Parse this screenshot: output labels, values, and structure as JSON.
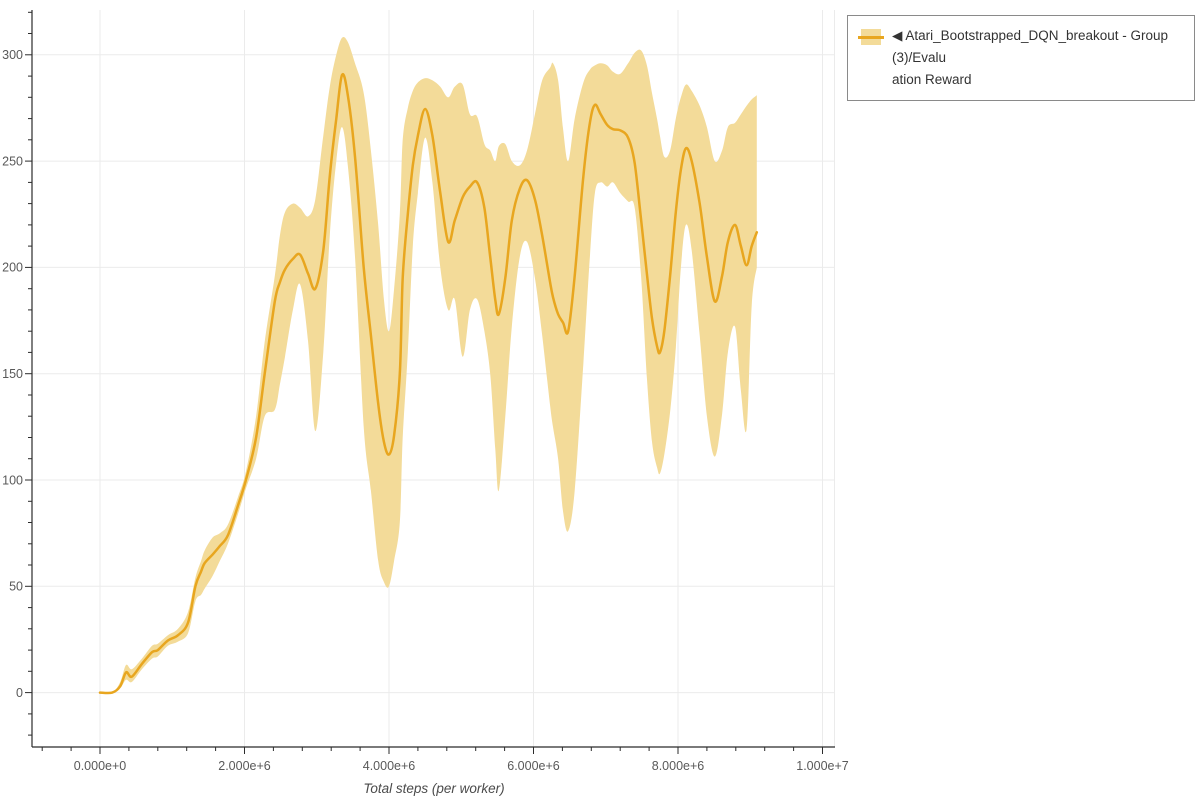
{
  "page": {
    "background": "#ffffff"
  },
  "legend": {
    "collapse_icon": "◀",
    "label_full": "Atari_Bootstrapped_DQN_breakout - Group(3)/Evaluation Reward",
    "label_lines": [
      "Atari_Bootstrapped_DQN_breakout - Group(3)/Evalu",
      "ation Reward"
    ],
    "swatch": {
      "band_color": "#F3DB99",
      "line_color": "#E8A61F"
    }
  },
  "colors": {
    "grid": "#EBEBEB",
    "axis": "#2B2B2B",
    "tick_label": "#595959",
    "axis_label": "#4A4A4A",
    "series_line": "#E8A61F",
    "series_band": "#F3DB99"
  },
  "chart_data": {
    "type": "line",
    "title": "",
    "xlabel": "Total steps (per worker)",
    "ylabel": "",
    "x_unit": "steps, stored in millions (1e6)",
    "grid": "on",
    "legend_position": "top-right-outside",
    "x_axis": {
      "major_ticks": [
        0,
        2,
        4,
        6,
        8,
        10
      ],
      "major_labels": [
        "0.000e+0",
        "2.000e+6",
        "4.000e+6",
        "6.000e+6",
        "8.000e+6",
        "1.000e+7"
      ],
      "minor_step": 0.4,
      "minor_start": -0.8,
      "minor_end": 10
    },
    "y_axis": {
      "major_ticks": [
        0,
        50,
        100,
        150,
        200,
        250,
        300
      ],
      "major_labels": [
        "0",
        "50",
        "100",
        "150",
        "200",
        "250",
        "300"
      ],
      "minor_step": 10,
      "minor_start": -20,
      "minor_end": 320
    },
    "series": [
      {
        "name": "Atari_Bootstrapped_DQN_breakout - Group(3)/Evaluation Reward",
        "color": "#E8A61F",
        "band_color": "#F3DB99",
        "smoothed": true,
        "x": [
          0,
          0.17,
          0.28,
          0.36,
          0.44,
          0.58,
          0.72,
          0.8,
          0.94,
          1.08,
          1.22,
          1.32,
          1.4,
          1.45,
          1.56,
          1.66,
          1.77,
          1.91,
          2.02,
          2.16,
          2.28,
          2.42,
          2.49,
          2.56,
          2.67,
          2.77,
          2.88,
          2.98,
          3.09,
          3.18,
          3.27,
          3.35,
          3.43,
          3.53,
          3.65,
          3.75,
          3.85,
          3.93,
          4.0,
          4.07,
          4.15,
          4.19,
          4.26,
          4.33,
          4.4,
          4.5,
          4.6,
          4.71,
          4.82,
          4.91,
          5.02,
          5.12,
          5.22,
          5.32,
          5.4,
          5.47,
          5.52,
          5.61,
          5.7,
          5.81,
          5.91,
          6.02,
          6.12,
          6.23,
          6.27,
          6.34,
          6.41,
          6.48,
          6.57,
          6.69,
          6.78,
          6.85,
          6.93,
          7.02,
          7.1,
          7.2,
          7.31,
          7.4,
          7.49,
          7.57,
          7.64,
          7.71,
          7.75,
          7.81,
          7.89,
          7.97,
          8.04,
          8.11,
          8.19,
          8.3,
          8.4,
          8.51,
          8.61,
          8.69,
          8.79,
          8.87,
          8.95,
          9.02,
          9.09
        ],
        "y": [
          0,
          0,
          3,
          9.5,
          7.5,
          13.5,
          19,
          20,
          24.5,
          27,
          33,
          50,
          57,
          61,
          65,
          69,
          74,
          88,
          100,
          120,
          150,
          184,
          193,
          199,
          204,
          206,
          197,
          190,
          208,
          243,
          270,
          290.5,
          281,
          252,
          200,
          168,
          136,
          118,
          112,
          121,
          150,
          195,
          225,
          248,
          262,
          274.5,
          262,
          235,
          212,
          222,
          233,
          238,
          240,
          228,
          205,
          185,
          178,
          195,
          222,
          237,
          241,
          232,
          215,
          193,
          186,
          178,
          174,
          170,
          196,
          243,
          268,
          276.5,
          272,
          267,
          265,
          264.5,
          261,
          249,
          222,
          197,
          176,
          163,
          160,
          170,
          196,
          226,
          246,
          256,
          250,
          230,
          205,
          184,
          196,
          212,
          220,
          210,
          201,
          210,
          216.5
        ],
        "y_lower": [
          0,
          0,
          2,
          6,
          5,
          11,
          16,
          17,
          22,
          24,
          28,
          43,
          46,
          49,
          55,
          62,
          70,
          84,
          96,
          110,
          130,
          133,
          145,
          158,
          180,
          192,
          165,
          123,
          160,
          215,
          250,
          266,
          248,
          205,
          125,
          95,
          62,
          52,
          50,
          62,
          80,
          120,
          160,
          210,
          235,
          261,
          240,
          200,
          180,
          185,
          158,
          180,
          185,
          170,
          150,
          115,
          95,
          130,
          172,
          205,
          212,
          195,
          168,
          135,
          125,
          110,
          85,
          76,
          95,
          155,
          205,
          235,
          240,
          238,
          240,
          235,
          231,
          228,
          195,
          148,
          118,
          106,
          103,
          112,
          132,
          162,
          200,
          220,
          208,
          168,
          130,
          111,
          131,
          160,
          172,
          142,
          124,
          182,
          200
        ],
        "y_upper": [
          0,
          0,
          5,
          13,
          11,
          16,
          22,
          23,
          27,
          30,
          38,
          54,
          62,
          67,
          73,
          75,
          79,
          92,
          104,
          130,
          165,
          196,
          215,
          226,
          230,
          228,
          224,
          232,
          262,
          285,
          300,
          308,
          306,
          296,
          282,
          255,
          220,
          185,
          170,
          190,
          225,
          260,
          275,
          283,
          287,
          289,
          288,
          285,
          280,
          285,
          286,
          272,
          271,
          258,
          255,
          250,
          257,
          258,
          250,
          248,
          255,
          272,
          288,
          294,
          296,
          288,
          265,
          250,
          270,
          287,
          293,
          295,
          296,
          295,
          292,
          291,
          296,
          301,
          302,
          295,
          282,
          270,
          262,
          252,
          255,
          270,
          280,
          286,
          283,
          276,
          266,
          250,
          255,
          266,
          268,
          272,
          276,
          279,
          281
        ]
      }
    ]
  }
}
